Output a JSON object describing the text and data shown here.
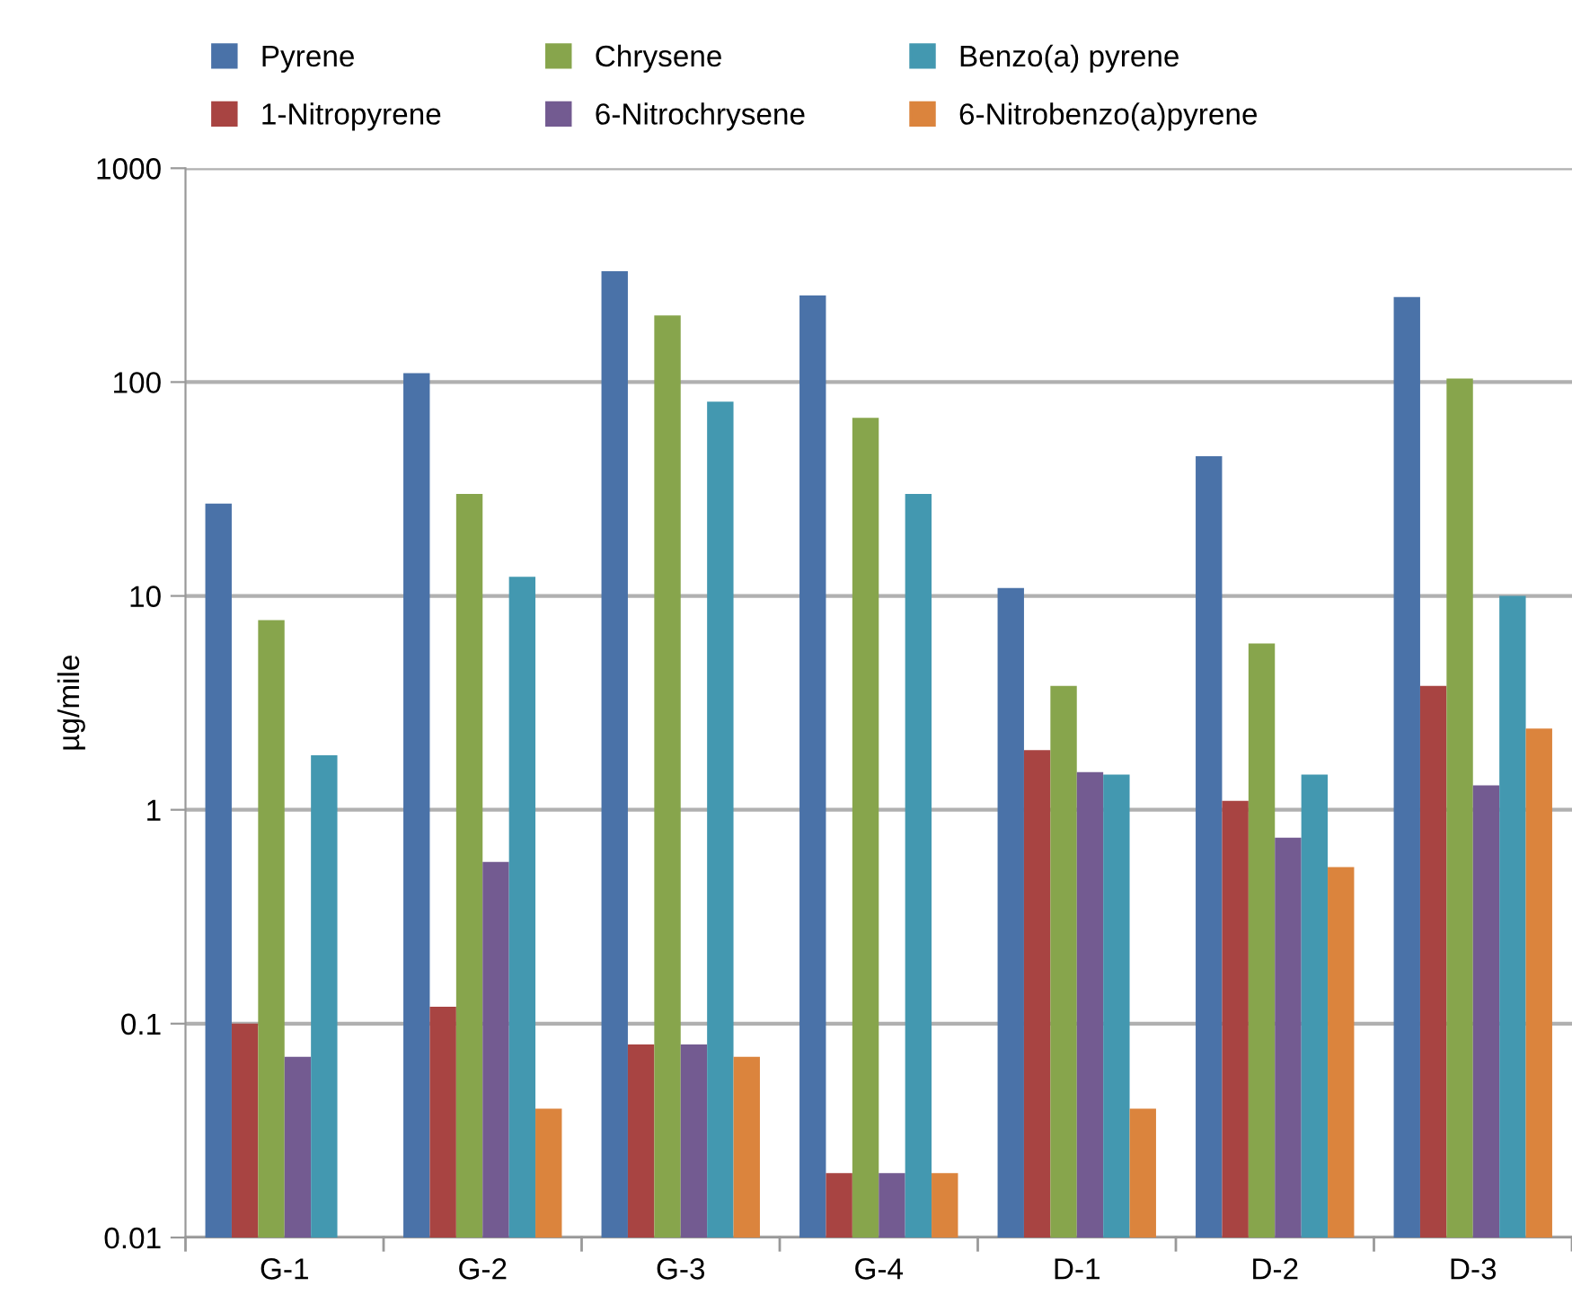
{
  "chart_data": {
    "type": "bar",
    "ylabel": "µg/mile",
    "log": true,
    "categories": [
      "G-1",
      "G-2",
      "G-3",
      "G-4",
      "D-1",
      "D-2",
      "D-3"
    ],
    "series": [
      {
        "name": "Pyrene",
        "color": "#4a72a8",
        "values": [
          27,
          110,
          330,
          254,
          10.9,
          45,
          250
        ]
      },
      {
        "name": "1-Nitropyrene",
        "color": "#a84442",
        "values": [
          0.1,
          0.12,
          0.08,
          0.02,
          1.9,
          1.1,
          3.8
        ]
      },
      {
        "name": "Chrysene",
        "color": "#87a54c",
        "values": [
          7.7,
          30,
          205,
          68,
          3.8,
          6.0,
          104
        ]
      },
      {
        "name": "6-Nitrochrysene",
        "color": "#735b91",
        "values": [
          0.07,
          0.57,
          0.08,
          0.02,
          1.5,
          0.74,
          1.3
        ]
      },
      {
        "name": "Benzo(a) pyrene",
        "color": "#4398b0",
        "values": [
          1.8,
          12.3,
          81,
          30,
          1.46,
          1.46,
          10
        ]
      },
      {
        "name": "6-Nitrobenzo(a)pyrene",
        "color": "#db843d",
        "values": [
          null,
          0.04,
          0.07,
          0.02,
          0.04,
          0.54,
          2.4
        ]
      }
    ],
    "ylim": [
      0.01,
      1000
    ],
    "yticks": [
      0.01,
      0.1,
      1,
      10,
      100,
      1000
    ],
    "grid": "y",
    "legend": "top"
  }
}
